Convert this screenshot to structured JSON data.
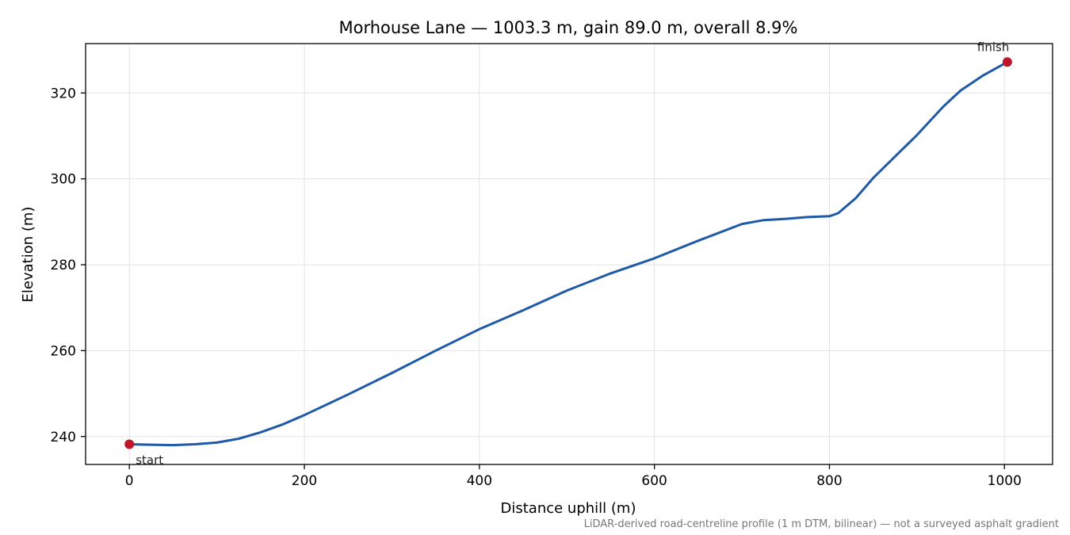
{
  "chart_data": {
    "type": "line",
    "title": "Morhouse Lane — 1003.3 m, gain 89.0 m, overall 8.9%",
    "xlabel": "Distance uphill (m)",
    "ylabel": "Elevation (m)",
    "xlim": [
      -50,
      1055
    ],
    "ylim": [
      233.5,
      331.5
    ],
    "xticks": [
      0,
      200,
      400,
      600,
      800,
      1000
    ],
    "yticks": [
      240,
      260,
      280,
      300,
      320
    ],
    "grid": true,
    "series": [
      {
        "color": "#1f5aa8",
        "x": [
          0,
          25,
          50,
          75,
          100,
          125,
          150,
          175,
          200,
          250,
          300,
          350,
          400,
          450,
          500,
          550,
          600,
          650,
          700,
          725,
          750,
          775,
          800,
          810,
          830,
          850,
          870,
          900,
          930,
          950,
          975,
          1003.3
        ],
        "y": [
          238.2,
          238.1,
          238.0,
          238.2,
          238.6,
          239.5,
          241.0,
          242.8,
          245.0,
          249.8,
          254.8,
          260.0,
          265.0,
          269.4,
          274.0,
          278.0,
          281.5,
          285.6,
          289.5,
          290.4,
          290.7,
          291.1,
          291.3,
          292.0,
          295.5,
          300.2,
          304.2,
          310.2,
          316.8,
          320.6,
          324.0,
          327.2
        ]
      }
    ],
    "markers": [
      {
        "x": 0,
        "y": 238.2,
        "label": "start",
        "color": "#c0172a"
      },
      {
        "x": 1003.3,
        "y": 327.2,
        "label": "finish",
        "color": "#c0172a"
      }
    ]
  },
  "footnote": "LiDAR-derived road-centreline profile (1 m DTM, bilinear) — not a surveyed asphalt gradient"
}
